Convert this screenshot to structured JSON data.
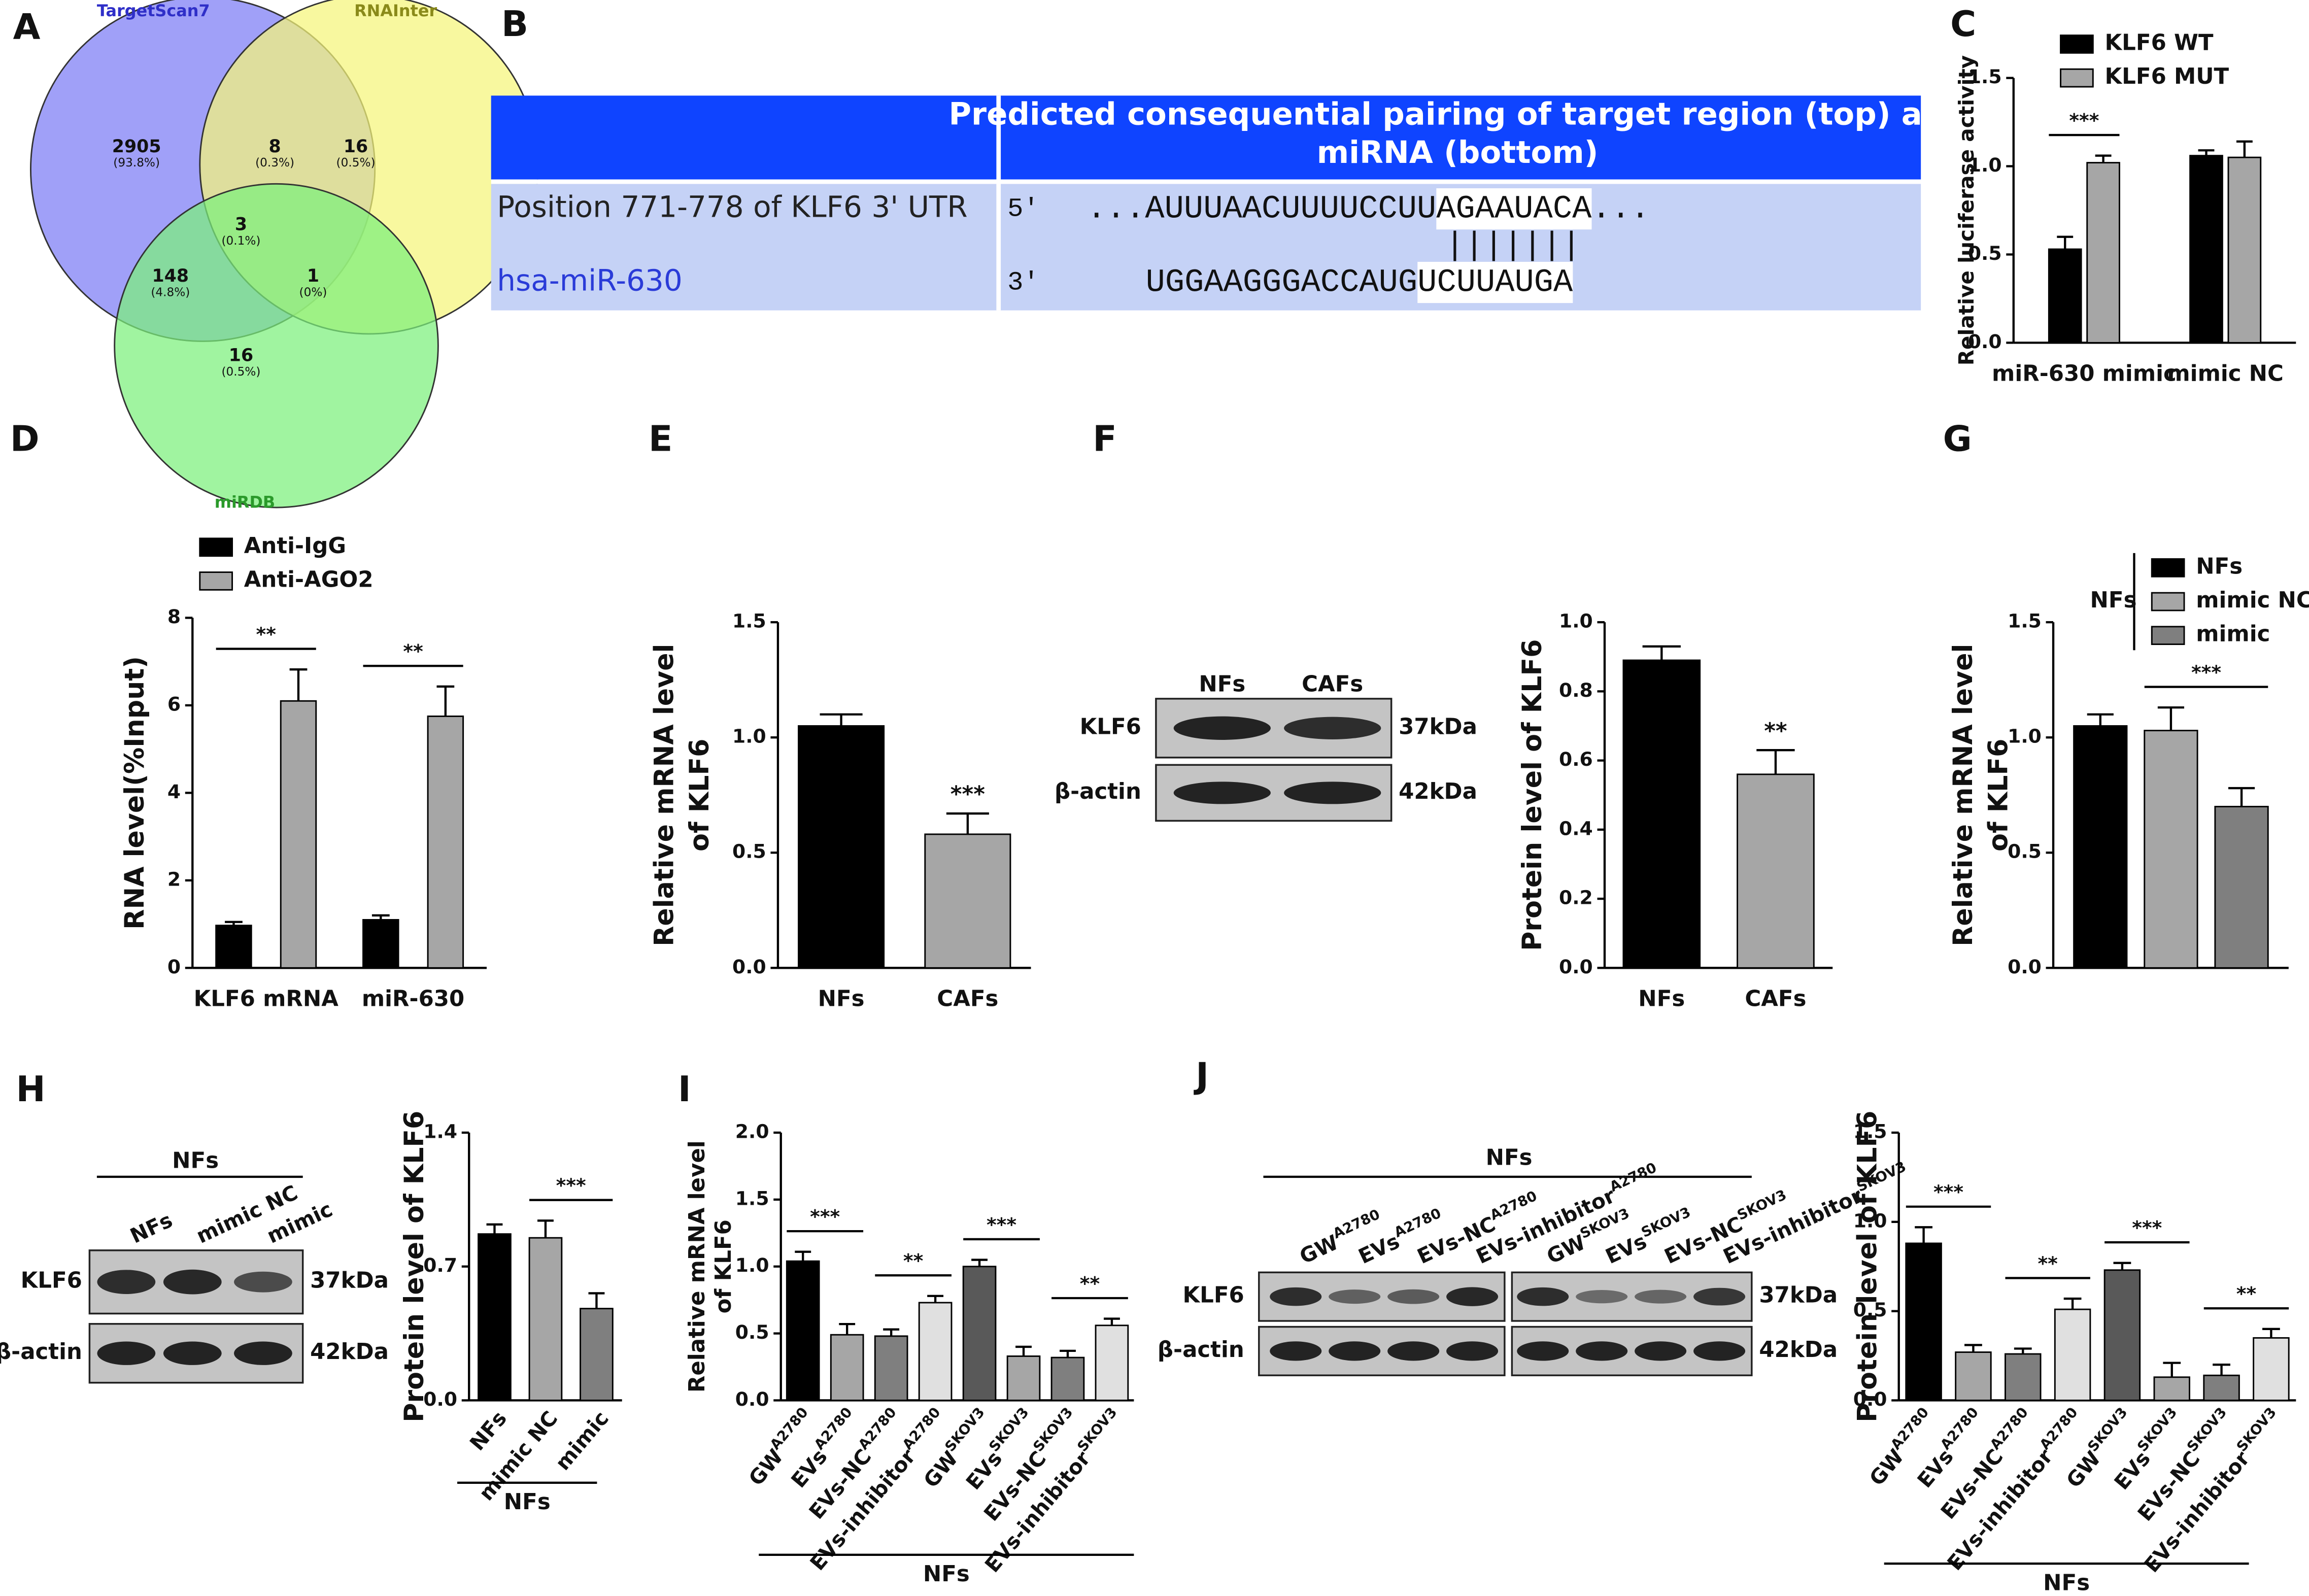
{
  "venn": {
    "panel": "A",
    "sets": [
      {
        "name": "TargetScan7",
        "color": "#7b7bf5"
      },
      {
        "name": "RNAInter",
        "color": "#f5f57a"
      },
      {
        "name": "miRDB",
        "color": "#7cf07c"
      }
    ],
    "regions": [
      {
        "count": 2905,
        "percent": "(93.8%)"
      },
      {
        "count": 8,
        "percent": "(0.3%)"
      },
      {
        "count": 16,
        "percent": "(0.5%)"
      },
      {
        "count": 3,
        "percent": "(0.1%)"
      },
      {
        "count": 148,
        "percent": "(4.8%)"
      },
      {
        "count": 1,
        "percent": "(0%)"
      },
      {
        "count": 16,
        "percent": "(0.5%)"
      }
    ]
  },
  "pairing": {
    "panel": "B",
    "header": [
      "Predicted consequential pairing of target region (top) and",
      "miRNA (bottom)"
    ],
    "rows": [
      {
        "label": "Position 771-778 of KLF6 3' UTR",
        "end": "5'",
        "sequence": [
          "...AUUUAACUUUUCCUU",
          "AGAAUACA",
          "..."
        ]
      },
      {
        "label": "hsa-miR-630",
        "end": "3'",
        "sequence": [
          "UGGAAGGGACCAUG",
          "UCUUAUGA"
        ]
      }
    ],
    "match": "|||||||"
  },
  "blots": [
    {
      "panel": "F",
      "lanes": [
        "NFs",
        "CAFs"
      ],
      "rows": [
        "KLF6",
        "β-actin"
      ],
      "sizes": [
        "37kDa",
        "42kDa"
      ]
    },
    {
      "panel": "H",
      "header": "NFs",
      "lanes": [
        "NFs",
        "mimic NC",
        "mimic"
      ],
      "rows": [
        "KLF6",
        "β-actin"
      ],
      "sizes": [
        "37kDa",
        "42kDa"
      ]
    },
    {
      "panel": "J",
      "header": "NFs",
      "lanes": [
        [
          "GW",
          "A2780"
        ],
        [
          "EVs",
          "A2780"
        ],
        [
          "EVs-NC",
          "A2780"
        ],
        [
          "EVs-inhibitor",
          "A2780"
        ],
        [
          "GW",
          "SKOV3"
        ],
        [
          "EVs",
          "SKOV3"
        ],
        [
          "EVs-NC",
          "SKOV3"
        ],
        [
          "EVs-inhibitor",
          "SKOV3"
        ]
      ],
      "rows": [
        "KLF6",
        "β-actin"
      ],
      "sizes": [
        "37kDa",
        "42kDa"
      ]
    }
  ],
  "chart_data": [
    {
      "panel": "C",
      "type": "bar",
      "ylabel": "Relative luciferase activity",
      "categories": [
        "miR-630 mimic",
        "mimic NC"
      ],
      "series": [
        {
          "name": "KLF6 WT",
          "color": "#000000",
          "values": [
            0.53,
            1.06
          ],
          "errors": [
            0.07,
            0.03
          ]
        },
        {
          "name": "KLF6 MUT",
          "color": "#a6a6a6",
          "values": [
            1.02,
            1.05
          ],
          "errors": [
            0.04,
            0.09
          ]
        }
      ],
      "ylim": [
        0,
        1.5
      ],
      "yticks": [
        {
          "value": 0,
          "label": "0.0"
        },
        0.5,
        {
          "value": 1,
          "label": "1.0"
        },
        1.5
      ],
      "annotations": [
        "***"
      ],
      "legend": "top-left"
    },
    {
      "panel": "D",
      "type": "bar",
      "ylabel": "RNA level(%Input)",
      "categories": [
        "KLF6 mRNA",
        "miR-630"
      ],
      "series": [
        {
          "name": "Anti-IgG",
          "color": "#000000",
          "values": [
            0.97,
            1.1
          ],
          "errors": [
            0.08,
            0.1
          ]
        },
        {
          "name": "Anti-AGO2",
          "color": "#a6a6a6",
          "values": [
            6.1,
            5.75
          ],
          "errors": [
            0.72,
            0.68
          ]
        }
      ],
      "ylim": [
        0,
        8
      ],
      "yticks": [
        0,
        2,
        4,
        6,
        8
      ],
      "annotations": [
        "**",
        "**"
      ],
      "legend": "top-left"
    },
    {
      "panel": "E",
      "type": "bar",
      "ylabel": [
        "Relative mRNA level",
        "of KLF6"
      ],
      "categories": [
        "NFs",
        "CAFs"
      ],
      "values": [
        1.05,
        0.58
      ],
      "errors": [
        0.05,
        0.09
      ],
      "colors": [
        "#000000",
        "#a6a6a6"
      ],
      "ylim": [
        0,
        1.5
      ],
      "yticks": [
        {
          "value": 0,
          "label": "0.0"
        },
        0.5,
        {
          "value": 1,
          "label": "1.0"
        },
        1.5
      ],
      "annotations": [
        "***"
      ]
    },
    {
      "type": "bar",
      "ylabel": "Protein level of KLF6",
      "categories": [
        "NFs",
        "CAFs"
      ],
      "values": [
        0.89,
        0.56
      ],
      "errors": [
        0.04,
        0.07
      ],
      "colors": [
        "#000000",
        "#a6a6a6"
      ],
      "ylim": [
        0,
        1
      ],
      "yticks": [
        {
          "value": 0,
          "label": "0.0"
        },
        0.2,
        0.4,
        0.6,
        0.8,
        {
          "value": 1,
          "label": "1.0"
        }
      ],
      "annotations": [
        "**"
      ]
    },
    {
      "panel": "G",
      "type": "bar",
      "ylabel": [
        "Relative mRNA level",
        "of KLF6"
      ],
      "categories": [
        null
      ],
      "series": [
        {
          "name": "NFs",
          "color": "#000000",
          "values": [
            1.05
          ],
          "errors": [
            0.05
          ]
        },
        {
          "name": "mimic NC",
          "color": "#a6a6a6",
          "values": [
            1.03
          ],
          "errors": [
            0.1
          ]
        },
        {
          "name": "mimic",
          "color": "#7f7f7f",
          "values": [
            0.7
          ],
          "errors": [
            0.08
          ]
        }
      ],
      "legend_title": "NFs",
      "legend": "right",
      "ylim": [
        0,
        1.5
      ],
      "yticks": [
        {
          "value": 0,
          "label": "0.0"
        },
        0.5,
        {
          "value": 1,
          "label": "1.0"
        },
        1.5
      ],
      "annotations": [
        "***"
      ]
    },
    {
      "type": "bar",
      "ylabel": "Protein level of KLF6",
      "categories": [
        "NFs",
        "mimic NC",
        "mimic"
      ],
      "values": [
        0.87,
        0.85,
        0.48
      ],
      "errors": [
        0.05,
        0.09,
        0.08
      ],
      "colors": [
        "#000000",
        "#a6a6a6",
        "#7f7f7f"
      ],
      "ylim": [
        0,
        1.4
      ],
      "yticks": [
        {
          "value": 0,
          "label": "0.0"
        },
        0.7,
        1.4
      ],
      "group_label": "NFs",
      "annotations": [
        "***"
      ]
    },
    {
      "panel": "I",
      "type": "bar",
      "ylabel": [
        "Relative mRNA level",
        "of KLF6"
      ],
      "categories": [
        [
          "GW",
          "A2780"
        ],
        [
          "EVs",
          "A2780"
        ],
        [
          "EVs-NC",
          "A2780"
        ],
        [
          "EVs-inhibitor",
          "A2780"
        ],
        [
          "GW",
          "SKOV3"
        ],
        [
          "EVs",
          "SKOV3"
        ],
        [
          "EVs-NC",
          "SKOV3"
        ],
        [
          "EVs-inhibitor",
          "SKOV3"
        ]
      ],
      "values": [
        1.04,
        0.49,
        0.48,
        0.73,
        1.0,
        0.33,
        0.32,
        0.56
      ],
      "errors": [
        0.07,
        0.08,
        0.05,
        0.05,
        0.05,
        0.07,
        0.05,
        0.05
      ],
      "colors": [
        "#000000",
        "#a6a6a6",
        "#7f7f7f",
        "#e0e0e0",
        "#595959",
        "#a6a6a6",
        "#7f7f7f",
        "#e0e0e0"
      ],
      "ylim": [
        0,
        2
      ],
      "yticks": [
        {
          "value": 0,
          "label": "0.0"
        },
        0.5,
        {
          "value": 1,
          "label": "1.0"
        },
        1.5,
        {
          "value": 2,
          "label": "2.0"
        }
      ],
      "group_label": "NFs",
      "annotations": [
        "***",
        "**",
        "***",
        "**"
      ]
    },
    {
      "type": "bar",
      "ylabel": "Protein level of KLF6",
      "categories": [
        [
          "GW",
          "A2780"
        ],
        [
          "EVs",
          "A2780"
        ],
        [
          "EVs-NC",
          "A2780"
        ],
        [
          "EVs-inhibitor",
          "A2780"
        ],
        [
          "GW",
          "SKOV3"
        ],
        [
          "EVs",
          "SKOV3"
        ],
        [
          "EVs-NC",
          "SKOV3"
        ],
        [
          "EVs-inhibitor",
          "SKOV3"
        ]
      ],
      "values": [
        0.88,
        0.27,
        0.26,
        0.51,
        0.73,
        0.13,
        0.14,
        0.35
      ],
      "errors": [
        0.09,
        0.04,
        0.03,
        0.06,
        0.04,
        0.08,
        0.06,
        0.05
      ],
      "colors": [
        "#000000",
        "#a6a6a6",
        "#7f7f7f",
        "#e0e0e0",
        "#595959",
        "#a6a6a6",
        "#7f7f7f",
        "#e0e0e0"
      ],
      "ylim": [
        0,
        1.5
      ],
      "yticks": [
        {
          "value": 0,
          "label": "0.0"
        },
        0.5,
        {
          "value": 1,
          "label": "1.0"
        },
        1.5
      ],
      "group_label": "NFs",
      "annotations": [
        "***",
        "**",
        "***",
        "**"
      ]
    }
  ]
}
